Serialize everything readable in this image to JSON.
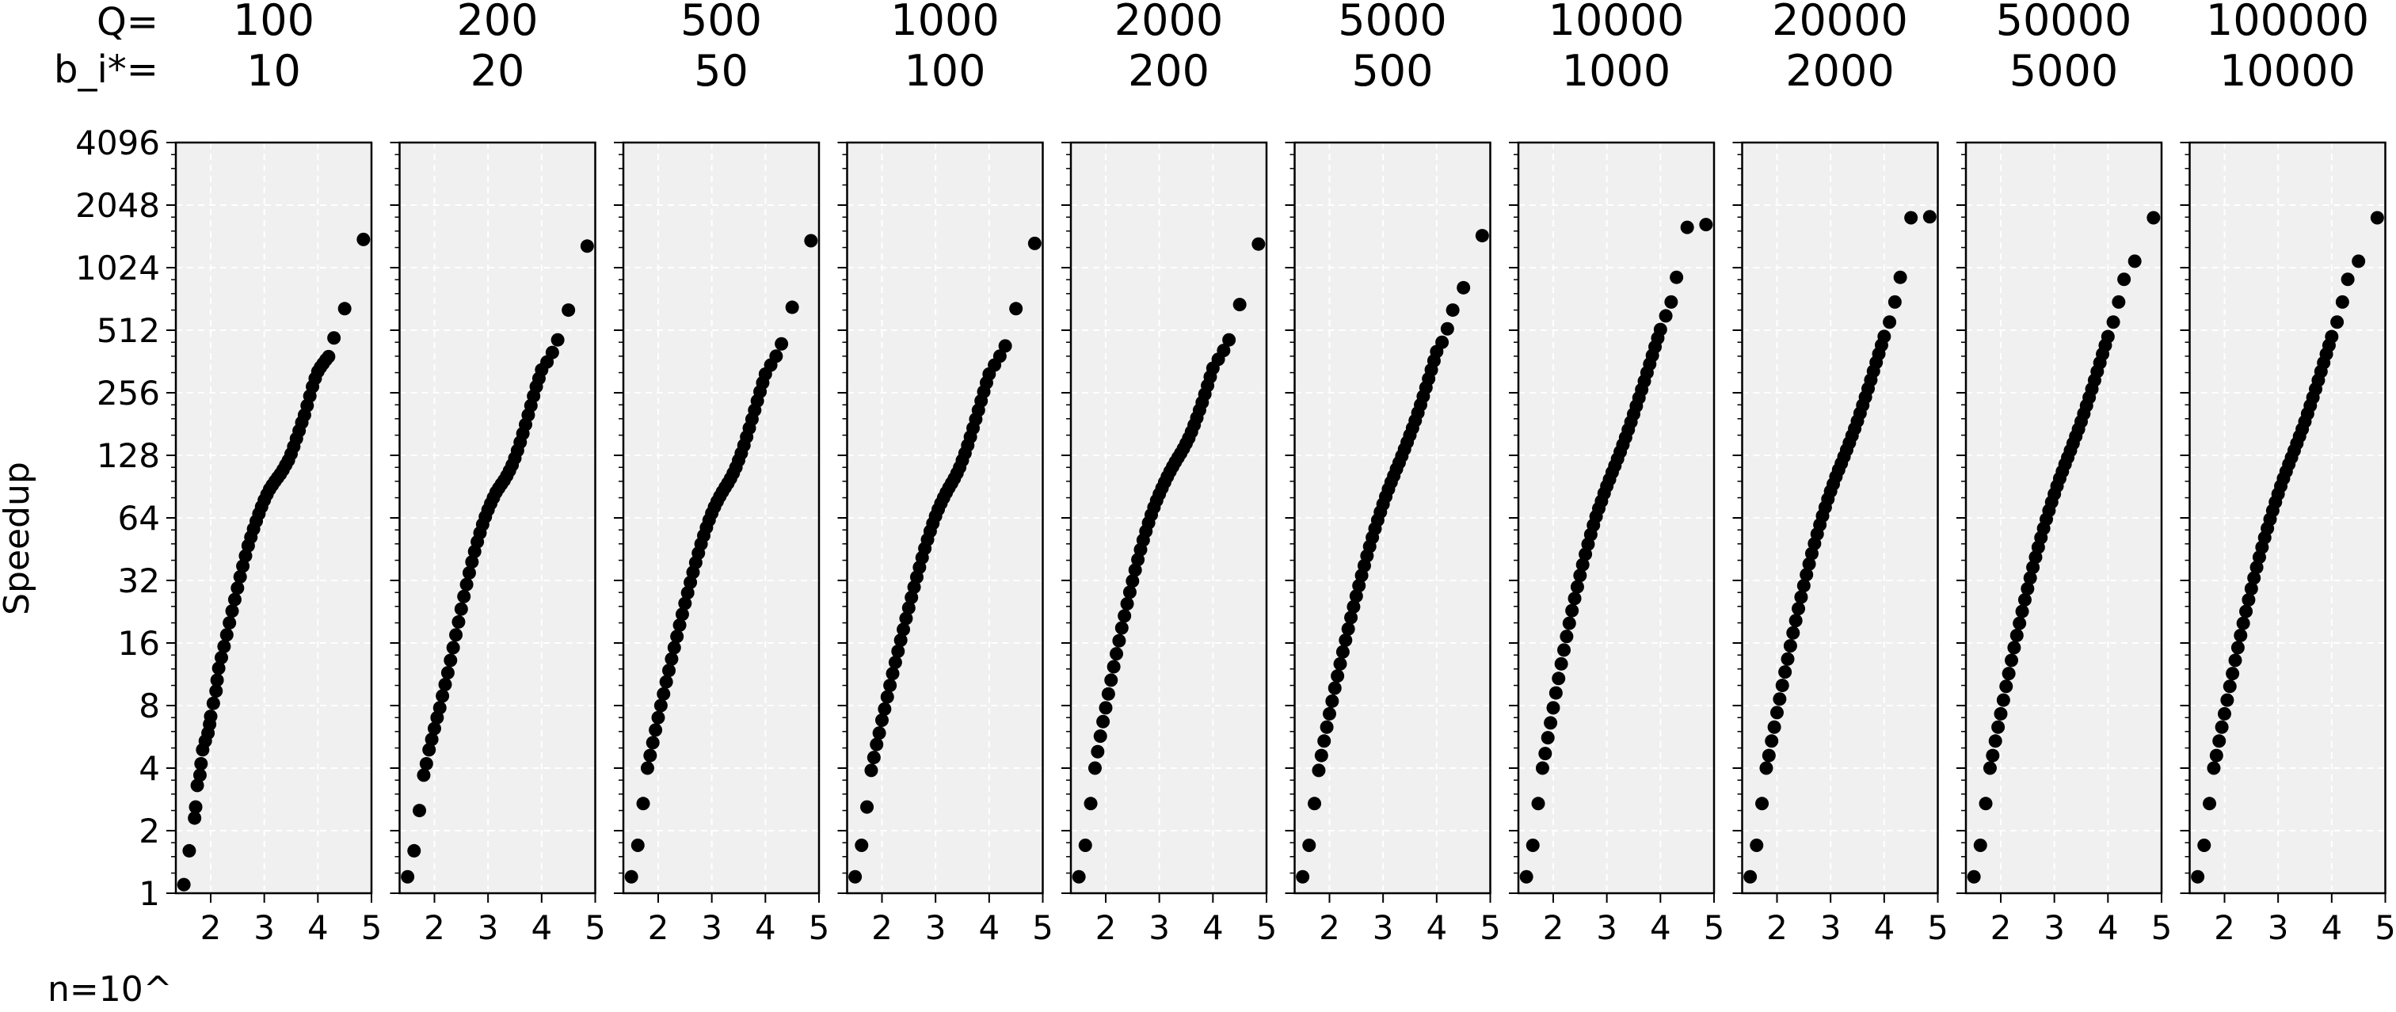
{
  "row_labels": {
    "q": "Q=",
    "b": "b_i*="
  },
  "ylabel": "Speedup",
  "xlabel": "n=10^",
  "chart_data": {
    "type": "scatter",
    "x_scale": "log10 exponent",
    "y_scale": "log2",
    "xlim": [
      1.35,
      5.0
    ],
    "xticks": [
      2,
      3,
      4,
      5
    ],
    "ylim": [
      1,
      4096
    ],
    "yticks": [
      1,
      2,
      4,
      8,
      16,
      32,
      64,
      128,
      256,
      512,
      1024,
      2048,
      4096
    ],
    "grid": true,
    "background": "#f0f0f0",
    "marker_color": "#000000",
    "panels": [
      {
        "q": "100",
        "b": "10",
        "x": [
          1.5,
          1.6,
          1.7,
          1.72,
          1.75,
          1.8,
          1.82,
          1.85,
          1.9,
          1.95,
          1.98,
          2.0,
          2.05,
          2.1,
          2.12,
          2.15,
          2.2,
          2.25,
          2.3,
          2.35,
          2.4,
          2.45,
          2.5,
          2.55,
          2.6,
          2.65,
          2.7,
          2.75,
          2.8,
          2.85,
          2.9,
          2.95,
          3.0,
          3.05,
          3.1,
          3.15,
          3.2,
          3.25,
          3.3,
          3.35,
          3.4,
          3.45,
          3.5,
          3.55,
          3.6,
          3.65,
          3.7,
          3.75,
          3.8,
          3.85,
          3.9,
          3.95,
          4.0,
          4.05,
          4.1,
          4.15,
          4.2,
          4.3,
          4.5,
          4.85
        ],
        "y": [
          1.1,
          1.6,
          2.3,
          2.6,
          3.3,
          3.7,
          4.2,
          4.9,
          5.4,
          5.9,
          6.5,
          7.1,
          8.2,
          9.4,
          10.6,
          12.1,
          13.6,
          15.4,
          17.5,
          20,
          22.8,
          25.9,
          29.4,
          33.3,
          37.5,
          42,
          47,
          51.7,
          56.6,
          61.7,
          67,
          72.4,
          77.9,
          83,
          88,
          92,
          96,
          100,
          104,
          109,
          115,
          121,
          130,
          141,
          154,
          168,
          184,
          200,
          222,
          247,
          274,
          300,
          324,
          340,
          354,
          369,
          382,
          470,
          650,
          1400
        ]
      },
      {
        "q": "200",
        "b": "20",
        "x": [
          1.5,
          1.62,
          1.72,
          1.8,
          1.85,
          1.9,
          1.95,
          2.0,
          2.05,
          2.1,
          2.15,
          2.2,
          2.25,
          2.3,
          2.35,
          2.4,
          2.45,
          2.5,
          2.55,
          2.6,
          2.65,
          2.7,
          2.75,
          2.8,
          2.85,
          2.9,
          2.95,
          3.0,
          3.05,
          3.1,
          3.15,
          3.2,
          3.25,
          3.3,
          3.35,
          3.4,
          3.45,
          3.5,
          3.55,
          3.6,
          3.65,
          3.7,
          3.75,
          3.8,
          3.85,
          3.9,
          3.95,
          4.0,
          4.1,
          4.2,
          4.3,
          4.5,
          4.85
        ],
        "y": [
          1.2,
          1.6,
          2.5,
          3.7,
          4.2,
          4.9,
          5.5,
          6.2,
          7.0,
          7.8,
          8.9,
          10.1,
          11.5,
          13.2,
          15.2,
          17.5,
          20.2,
          23.3,
          26.8,
          30.6,
          34.8,
          39.3,
          44.1,
          49.1,
          54.2,
          59.5,
          64.8,
          70,
          75,
          80,
          85,
          89,
          93,
          97,
          102,
          108,
          115,
          124,
          135,
          148,
          163,
          180,
          200,
          222,
          247,
          274,
          300,
          330,
          360,
          400,
          460,
          640,
          1300
        ]
      },
      {
        "q": "500",
        "b": "50",
        "x": [
          1.5,
          1.62,
          1.72,
          1.8,
          1.85,
          1.9,
          1.95,
          2.0,
          2.05,
          2.1,
          2.15,
          2.2,
          2.25,
          2.3,
          2.35,
          2.4,
          2.45,
          2.5,
          2.55,
          2.6,
          2.65,
          2.7,
          2.75,
          2.8,
          2.85,
          2.9,
          2.95,
          3.0,
          3.05,
          3.1,
          3.15,
          3.2,
          3.25,
          3.3,
          3.35,
          3.4,
          3.45,
          3.5,
          3.55,
          3.6,
          3.65,
          3.7,
          3.75,
          3.8,
          3.85,
          3.9,
          3.95,
          4.0,
          4.1,
          4.2,
          4.3,
          4.5,
          4.85
        ],
        "y": [
          1.2,
          1.7,
          2.7,
          4.0,
          4.6,
          5.3,
          6.1,
          7.0,
          8.0,
          9.1,
          10.4,
          11.8,
          13.4,
          15.2,
          17.2,
          19.5,
          22.0,
          24.8,
          27.9,
          31.3,
          35.0,
          39.0,
          43.3,
          47.9,
          52.6,
          57.5,
          62.5,
          67.4,
          72.2,
          76.8,
          81.2,
          85.5,
          89.7,
          94,
          99,
          105,
          112,
          121,
          131,
          143,
          157,
          173,
          191,
          211,
          234,
          259,
          286,
          315,
          348,
          384,
          440,
          660,
          1380
        ]
      },
      {
        "q": "1000",
        "b": "100",
        "x": [
          1.5,
          1.62,
          1.72,
          1.8,
          1.85,
          1.9,
          1.95,
          2.0,
          2.05,
          2.1,
          2.15,
          2.2,
          2.25,
          2.3,
          2.35,
          2.4,
          2.45,
          2.5,
          2.55,
          2.6,
          2.65,
          2.7,
          2.75,
          2.8,
          2.85,
          2.9,
          2.95,
          3.0,
          3.05,
          3.1,
          3.15,
          3.2,
          3.25,
          3.3,
          3.35,
          3.4,
          3.45,
          3.5,
          3.55,
          3.6,
          3.65,
          3.7,
          3.75,
          3.8,
          3.85,
          3.9,
          3.95,
          4.0,
          4.1,
          4.2,
          4.3,
          4.5,
          4.85
        ],
        "y": [
          1.2,
          1.7,
          2.6,
          3.9,
          4.5,
          5.2,
          5.9,
          6.8,
          7.7,
          8.8,
          10.0,
          11.4,
          12.9,
          14.6,
          16.5,
          18.6,
          21.0,
          23.6,
          26.5,
          29.7,
          33.2,
          37.0,
          41.2,
          45.6,
          50.3,
          55.2,
          60.2,
          65.3,
          70.3,
          75.2,
          80.0,
          84.7,
          89.4,
          94,
          99,
          105,
          112,
          121,
          131,
          143,
          157,
          173,
          191,
          211,
          234,
          259,
          286,
          315,
          348,
          384,
          430,
          650,
          1340
        ]
      },
      {
        "q": "2000",
        "b": "200",
        "x": [
          1.5,
          1.62,
          1.72,
          1.8,
          1.85,
          1.9,
          1.95,
          2.0,
          2.05,
          2.1,
          2.15,
          2.2,
          2.25,
          2.3,
          2.35,
          2.4,
          2.45,
          2.5,
          2.55,
          2.6,
          2.65,
          2.7,
          2.75,
          2.8,
          2.85,
          2.9,
          2.95,
          3.0,
          3.05,
          3.1,
          3.15,
          3.2,
          3.25,
          3.3,
          3.35,
          3.4,
          3.45,
          3.5,
          3.55,
          3.6,
          3.65,
          3.7,
          3.75,
          3.8,
          3.85,
          3.9,
          3.95,
          4.0,
          4.1,
          4.2,
          4.3,
          4.5,
          4.85
        ],
        "y": [
          1.2,
          1.7,
          2.7,
          4.0,
          4.8,
          5.7,
          6.7,
          7.8,
          9.1,
          10.6,
          12.3,
          14.2,
          16.4,
          18.9,
          21.6,
          24.7,
          28.1,
          31.8,
          35.9,
          40.3,
          45.0,
          50.0,
          55.2,
          60.6,
          66.2,
          71.9,
          77.6,
          83.3,
          89,
          95,
          101,
          107,
          113,
          119,
          125,
          131,
          138,
          146,
          155,
          166,
          179,
          194,
          211,
          230,
          252,
          277,
          305,
          336,
          371,
          409,
          460,
          680,
          1330
        ]
      },
      {
        "q": "5000",
        "b": "500",
        "x": [
          1.5,
          1.62,
          1.72,
          1.8,
          1.85,
          1.9,
          1.95,
          2.0,
          2.05,
          2.1,
          2.15,
          2.2,
          2.25,
          2.3,
          2.35,
          2.4,
          2.45,
          2.5,
          2.55,
          2.6,
          2.65,
          2.7,
          2.75,
          2.8,
          2.85,
          2.9,
          2.95,
          3.0,
          3.05,
          3.1,
          3.15,
          3.2,
          3.25,
          3.3,
          3.35,
          3.4,
          3.45,
          3.5,
          3.55,
          3.6,
          3.65,
          3.7,
          3.75,
          3.8,
          3.85,
          3.9,
          3.95,
          4.0,
          4.1,
          4.2,
          4.3,
          4.5,
          4.85
        ],
        "y": [
          1.2,
          1.7,
          2.7,
          3.9,
          4.6,
          5.4,
          6.3,
          7.3,
          8.4,
          9.7,
          11.1,
          12.7,
          14.5,
          16.5,
          18.7,
          21.2,
          23.9,
          26.9,
          30.2,
          33.8,
          37.7,
          42.0,
          46.6,
          51.5,
          56.8,
          62.4,
          68.3,
          74.5,
          81,
          88,
          95,
          102,
          110,
          118,
          127,
          137,
          148,
          160,
          173,
          188,
          205,
          224,
          246,
          271,
          299,
          330,
          365,
          404,
          448,
          520,
          640,
          820,
          1460
        ]
      },
      {
        "q": "10000",
        "b": "1000",
        "x": [
          1.5,
          1.62,
          1.72,
          1.8,
          1.85,
          1.9,
          1.95,
          2.0,
          2.05,
          2.1,
          2.15,
          2.2,
          2.25,
          2.3,
          2.35,
          2.4,
          2.45,
          2.5,
          2.55,
          2.6,
          2.65,
          2.7,
          2.75,
          2.8,
          2.85,
          2.9,
          2.95,
          3.0,
          3.05,
          3.1,
          3.15,
          3.2,
          3.25,
          3.3,
          3.35,
          3.4,
          3.45,
          3.5,
          3.55,
          3.6,
          3.65,
          3.7,
          3.75,
          3.8,
          3.85,
          3.9,
          3.95,
          4.0,
          4.1,
          4.2,
          4.3,
          4.5,
          4.85
        ],
        "y": [
          1.2,
          1.7,
          2.7,
          4.0,
          4.7,
          5.6,
          6.6,
          7.8,
          9.2,
          10.8,
          12.7,
          14.8,
          17.2,
          19.9,
          22.9,
          26.2,
          29.8,
          33.8,
          38.1,
          42.8,
          47.8,
          53.2,
          59,
          65,
          71,
          77,
          84,
          91,
          98,
          106,
          114,
          123,
          133,
          144,
          156,
          170,
          185,
          202,
          221,
          242,
          265,
          291,
          320,
          352,
          387,
          426,
          469,
          516,
          600,
          700,
          920,
          1600,
          1650
        ]
      },
      {
        "q": "20000",
        "b": "2000",
        "x": [
          1.5,
          1.62,
          1.72,
          1.8,
          1.85,
          1.9,
          1.95,
          2.0,
          2.05,
          2.1,
          2.15,
          2.2,
          2.25,
          2.3,
          2.35,
          2.4,
          2.45,
          2.5,
          2.55,
          2.6,
          2.65,
          2.7,
          2.75,
          2.8,
          2.85,
          2.9,
          2.95,
          3.0,
          3.05,
          3.1,
          3.15,
          3.2,
          3.25,
          3.3,
          3.35,
          3.4,
          3.45,
          3.5,
          3.55,
          3.6,
          3.65,
          3.7,
          3.75,
          3.8,
          3.85,
          3.9,
          3.95,
          4.0,
          4.1,
          4.2,
          4.3,
          4.5,
          4.85
        ],
        "y": [
          1.2,
          1.7,
          2.7,
          4.0,
          4.6,
          5.4,
          6.3,
          7.4,
          8.6,
          10.0,
          11.6,
          13.4,
          15.5,
          17.9,
          20.5,
          23.4,
          26.6,
          30.2,
          34.1,
          38.4,
          43.1,
          48.1,
          53.5,
          59.3,
          65.4,
          71.9,
          78.8,
          86,
          93,
          101,
          109,
          117,
          126,
          136,
          147,
          159,
          172,
          187,
          204,
          223,
          244,
          268,
          295,
          325,
          358,
          394,
          434,
          478,
          560,
          700,
          920,
          1780,
          1800
        ]
      },
      {
        "q": "50000",
        "b": "5000",
        "x": [
          1.5,
          1.62,
          1.72,
          1.8,
          1.85,
          1.9,
          1.95,
          2.0,
          2.05,
          2.1,
          2.15,
          2.2,
          2.25,
          2.3,
          2.35,
          2.4,
          2.45,
          2.5,
          2.55,
          2.6,
          2.65,
          2.7,
          2.75,
          2.8,
          2.85,
          2.9,
          2.95,
          3.0,
          3.05,
          3.1,
          3.15,
          3.2,
          3.25,
          3.3,
          3.35,
          3.4,
          3.45,
          3.5,
          3.55,
          3.6,
          3.65,
          3.7,
          3.75,
          3.8,
          3.85,
          3.9,
          3.95,
          4.0,
          4.1,
          4.2,
          4.3,
          4.5,
          4.85
        ],
        "y": [
          1.2,
          1.7,
          2.7,
          4.0,
          4.6,
          5.4,
          6.3,
          7.3,
          8.5,
          9.9,
          11.4,
          13.2,
          15.2,
          17.4,
          19.9,
          22.7,
          25.8,
          29.2,
          32.9,
          37.0,
          41.4,
          46.2,
          51.4,
          57.0,
          63.0,
          69.4,
          76.2,
          83.4,
          91,
          99,
          107,
          116,
          125,
          135,
          146,
          158,
          171,
          186,
          203,
          222,
          243,
          267,
          294,
          324,
          357,
          393,
          433,
          477,
          560,
          700,
          900,
          1100,
          1780
        ]
      },
      {
        "q": "100000",
        "b": "10000",
        "x": [
          1.5,
          1.62,
          1.72,
          1.8,
          1.85,
          1.9,
          1.95,
          2.0,
          2.05,
          2.1,
          2.15,
          2.2,
          2.25,
          2.3,
          2.35,
          2.4,
          2.45,
          2.5,
          2.55,
          2.6,
          2.65,
          2.7,
          2.75,
          2.8,
          2.85,
          2.9,
          2.95,
          3.0,
          3.05,
          3.1,
          3.15,
          3.2,
          3.25,
          3.3,
          3.35,
          3.4,
          3.45,
          3.5,
          3.55,
          3.6,
          3.65,
          3.7,
          3.75,
          3.8,
          3.85,
          3.9,
          3.95,
          4.0,
          4.1,
          4.2,
          4.3,
          4.5,
          4.85
        ],
        "y": [
          1.2,
          1.7,
          2.7,
          4.0,
          4.6,
          5.4,
          6.3,
          7.3,
          8.5,
          9.9,
          11.4,
          13.2,
          15.2,
          17.4,
          19.9,
          22.7,
          25.8,
          29.2,
          32.9,
          37.0,
          41.4,
          46.2,
          51.4,
          57.0,
          63.0,
          69.4,
          76.2,
          83.4,
          91,
          99,
          107,
          116,
          125,
          135,
          146,
          158,
          171,
          186,
          203,
          222,
          243,
          267,
          294,
          324,
          357,
          393,
          433,
          477,
          560,
          700,
          900,
          1100,
          1780
        ]
      }
    ]
  }
}
